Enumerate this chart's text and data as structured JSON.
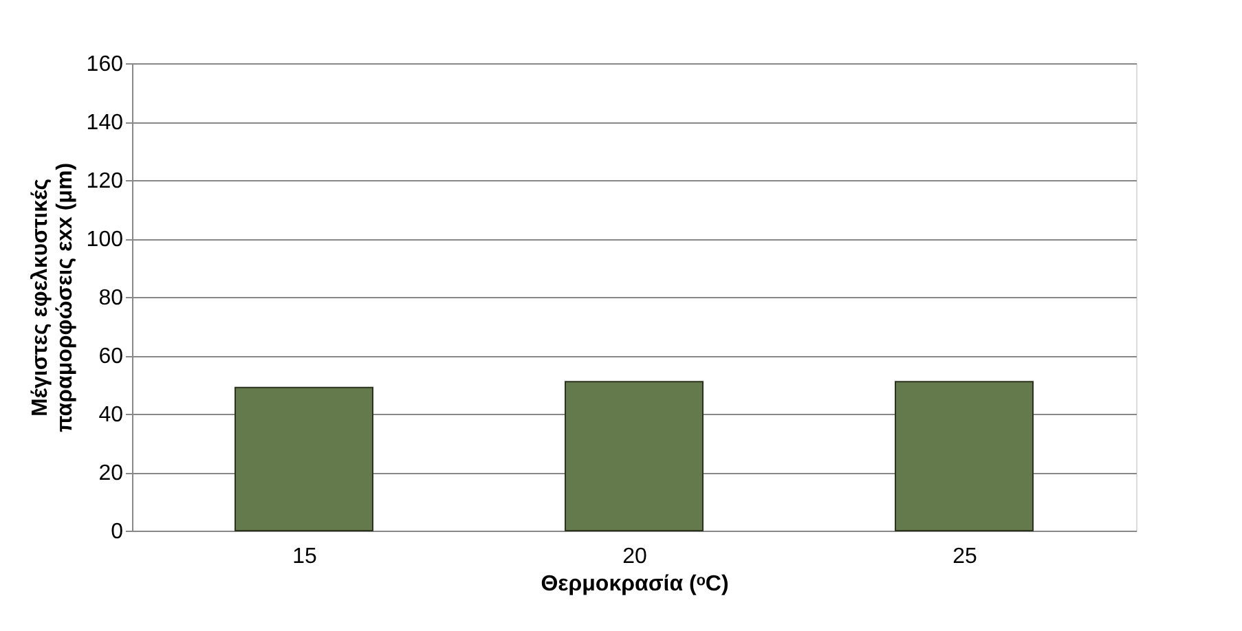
{
  "chart_data": {
    "type": "bar",
    "xlabel": "Θερμοκρασία (ᵒC)",
    "ylabel": "Μέγιστες εφελκυστικές\nπαραμορφώσεις εxx (μm)",
    "categories": [
      "15",
      "20",
      "25"
    ],
    "values": [
      49,
      51,
      51
    ],
    "color": "#647a4c",
    "ylim": [
      0,
      160
    ],
    "yticks": [
      0,
      20,
      40,
      60,
      80,
      100,
      120,
      140,
      160
    ],
    "grid": "y"
  }
}
